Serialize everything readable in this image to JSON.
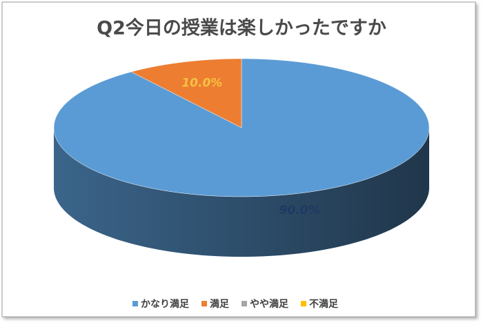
{
  "chart_data": {
    "type": "pie",
    "title": "Q2今日の授業は楽しかったですか",
    "categories": [
      "かなり満足",
      "満足",
      "やや満足",
      "不満足"
    ],
    "values": [
      90,
      10,
      0,
      0
    ],
    "value_labels": [
      "90.0%",
      "10.0%",
      null,
      null
    ],
    "colors": [
      "#5b9bd5",
      "#ed7d31",
      "#a5a5a5",
      "#ffc000"
    ],
    "label_colors": [
      "#1f3864",
      "#f5c242",
      null,
      null
    ],
    "legend": "bottom"
  }
}
